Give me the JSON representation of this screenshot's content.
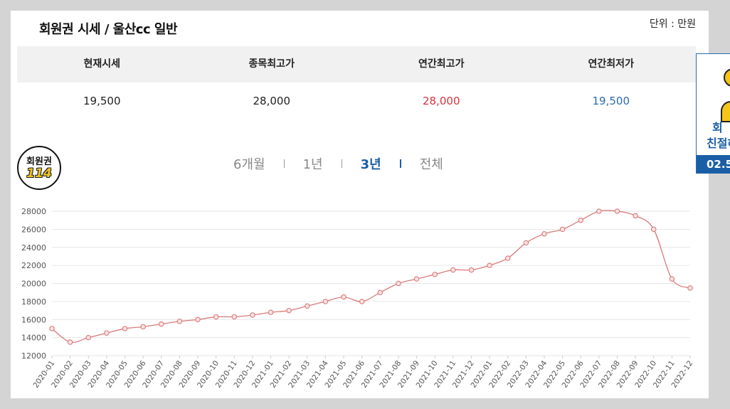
{
  "header": {
    "title": "회원권 시세 / 울산cc 일반",
    "unit": "단위 : 만원"
  },
  "stats": {
    "labels": [
      "현재시세",
      "종목최고가",
      "연간최고가",
      "연간최저가"
    ],
    "values": [
      "19,500",
      "28,000",
      "28,000",
      "19,500"
    ]
  },
  "logo": {
    "line1": "회원권",
    "line2": "114"
  },
  "tabs": {
    "items": [
      "6개월",
      "1년",
      "3년",
      "전체"
    ],
    "active": "3년"
  },
  "side_widget": {
    "line1": "회",
    "line2": "친절하",
    "phone": "02.5"
  },
  "colors": {
    "line": "#d97a7a",
    "grid": "#e6e6e6",
    "active_tab": "#1a5fa6",
    "up": "#d9323c",
    "down": "#2a6bb0"
  },
  "chart_data": {
    "type": "line",
    "title": "",
    "xlabel": "",
    "ylabel": "",
    "ylim": [
      12000,
      28000
    ],
    "yticks": [
      12000,
      14000,
      16000,
      18000,
      20000,
      22000,
      24000,
      26000,
      28000
    ],
    "grid": true,
    "categories": [
      "2020-01",
      "2020-02",
      "2020-03",
      "2020-04",
      "2020-05",
      "2020-06",
      "2020-07",
      "2020-08",
      "2020-09",
      "2020-10",
      "2020-11",
      "2020-12",
      "2021-01",
      "2021-02",
      "2021-03",
      "2021-04",
      "2021-05",
      "2021-06",
      "2021-07",
      "2021-08",
      "2021-09",
      "2021-10",
      "2021-11",
      "2021-12",
      "2022-01",
      "2022-02",
      "2022-03",
      "2022-04",
      "2022-05",
      "2022-06",
      "2022-07",
      "2022-08",
      "2022-09",
      "2022-10",
      "2022-11",
      "2022-12"
    ],
    "series": [
      {
        "values": [
          15000,
          13500,
          14000,
          14500,
          15000,
          15200,
          15500,
          15800,
          16000,
          16300,
          16300,
          16500,
          16800,
          17000,
          17500,
          18000,
          18500,
          18000,
          19000,
          20000,
          20500,
          21000,
          21500,
          21500,
          22000,
          22800,
          24500,
          25500,
          26000,
          27000,
          28000,
          28000,
          27500,
          26000,
          20500,
          19500
        ]
      }
    ]
  }
}
